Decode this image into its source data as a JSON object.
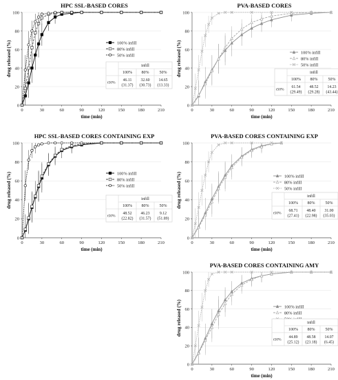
{
  "common": {
    "xlabel": "time (min)",
    "ylabel": "drug released (%)",
    "infill_header": "infill",
    "t50_label": "t50%",
    "xticks": [
      0,
      30,
      60,
      90,
      120,
      150,
      180,
      210
    ],
    "yticks": [
      0,
      20,
      40,
      60,
      80,
      100
    ],
    "xlim": [
      0,
      210
    ],
    "ylim": [
      0,
      100
    ]
  },
  "chart_data": [
    {
      "type": "line",
      "title": "HPC SSL-BASED CORES",
      "xlabel": "time (min)",
      "ylabel": "drug released (%)",
      "series": [
        {
          "name": "100% infill",
          "color": "#000000",
          "marker": "square",
          "x": [
            0,
            5,
            10,
            15,
            20,
            25,
            30,
            40,
            50,
            60,
            75,
            90,
            120,
            150,
            180,
            210
          ],
          "y": [
            0,
            10,
            24,
            40,
            54,
            66,
            76,
            89,
            95,
            98,
            99,
            100,
            100,
            100,
            100,
            100
          ]
        },
        {
          "name": "80% infill",
          "color": "#444444",
          "marker": "square-open",
          "x": [
            0,
            5,
            10,
            15,
            20,
            25,
            30,
            40,
            50,
            60,
            75,
            90,
            120,
            150,
            180,
            210
          ],
          "y": [
            0,
            18,
            40,
            62,
            78,
            88,
            94,
            98,
            99,
            100,
            100,
            100,
            100,
            100,
            100,
            100
          ]
        },
        {
          "name": "50% infill",
          "color": "#222222",
          "marker": "circle-open",
          "x": [
            0,
            5,
            10,
            15,
            20,
            25,
            30,
            40,
            50,
            60,
            75,
            90,
            120,
            150,
            180,
            210
          ],
          "y": [
            0,
            38,
            65,
            80,
            90,
            95,
            98,
            99,
            100,
            100,
            100,
            100,
            100,
            100,
            100,
            100
          ]
        }
      ],
      "t50_values": [
        "46.11 (31.37)",
        "32.60 (30.73)",
        "14.65 (13.33)"
      ]
    },
    {
      "type": "line",
      "title": "PVA-BASED CORES",
      "xlabel": "time (min)",
      "ylabel": "drug released (%)",
      "series": [
        {
          "name": "100% infill",
          "color": "#8c8c8c",
          "marker": "triangle",
          "x": [
            0,
            10,
            20,
            30,
            40,
            50,
            60,
            75,
            90,
            105,
            120,
            150,
            180,
            210
          ],
          "y": [
            0,
            10,
            25,
            38,
            50,
            59,
            67,
            76,
            83,
            88,
            92,
            97,
            99,
            100
          ]
        },
        {
          "name": "80% infill",
          "color": "#a6a6a6",
          "marker": "triangle-open",
          "x": [
            0,
            10,
            20,
            30,
            40,
            50,
            60,
            75,
            90,
            105,
            120,
            150,
            180,
            210
          ],
          "y": [
            0,
            11,
            23,
            37,
            50,
            62,
            72,
            82,
            89,
            93,
            96,
            99,
            100,
            100
          ]
        },
        {
          "name": "50% infill",
          "color": "#b3b3b3",
          "marker": "cross",
          "x": [
            0,
            5,
            10,
            15,
            20,
            25,
            30,
            40,
            50,
            60,
            90,
            120,
            150,
            180,
            210
          ],
          "y": [
            0,
            18,
            38,
            58,
            75,
            87,
            94,
            99,
            100,
            100,
            100,
            100,
            100,
            100,
            100
          ]
        }
      ],
      "t50_values": [
        "61.54 (29.49)",
        "48.52 (29.28)",
        "14.23 (43.44)"
      ]
    },
    {
      "type": "line",
      "title": "HPC SSL-BASED CORES CONTAINING EXP",
      "xlabel": "time (min)",
      "ylabel": "drug released (%)",
      "series": [
        {
          "name": "100% infill",
          "color": "#000000",
          "marker": "square",
          "x": [
            0,
            5,
            10,
            15,
            20,
            25,
            30,
            40,
            50,
            60,
            75,
            90,
            120,
            150,
            180,
            210
          ],
          "y": [
            0,
            8,
            20,
            32,
            43,
            54,
            63,
            77,
            86,
            92,
            96,
            98,
            100,
            100,
            100,
            100
          ]
        },
        {
          "name": "80% infill",
          "color": "#444444",
          "marker": "square-open",
          "x": [
            0,
            5,
            10,
            15,
            20,
            25,
            30,
            40,
            50,
            60,
            75,
            90,
            120,
            150,
            180,
            210
          ],
          "y": [
            0,
            9,
            21,
            33,
            44,
            55,
            65,
            78,
            87,
            93,
            97,
            99,
            100,
            100,
            100,
            100
          ]
        },
        {
          "name": "50% infill",
          "color": "#222222",
          "marker": "circle-open",
          "x": [
            0,
            5,
            10,
            15,
            20,
            25,
            30,
            40,
            50,
            60,
            75,
            90,
            120,
            150,
            180,
            210
          ],
          "y": [
            0,
            55,
            82,
            92,
            96,
            98,
            99,
            100,
            100,
            100,
            100,
            100,
            100,
            100,
            100,
            100
          ]
        }
      ],
      "t50_values": [
        "48.52 (22.82)",
        "46.23 (31.57)",
        "9.12 (51.89)"
      ]
    },
    {
      "type": "line",
      "title": "PVA-BASED CORES CONTAINING EXP",
      "xlabel": "time (min)",
      "ylabel": "drug released (%)",
      "series": [
        {
          "name": "100% infill",
          "color": "#8c8c8c",
          "marker": "triangle",
          "x": [
            0,
            10,
            20,
            30,
            40,
            50,
            60,
            75,
            90,
            105,
            120,
            135
          ],
          "y": [
            0,
            12,
            26,
            41,
            54,
            66,
            76,
            86,
            93,
            97,
            99,
            100
          ]
        },
        {
          "name": "80% infill",
          "color": "#a6a6a6",
          "marker": "triangle-open",
          "x": [
            0,
            10,
            20,
            30,
            40,
            50,
            60,
            75,
            90,
            105,
            120,
            135
          ],
          "y": [
            0,
            11,
            24,
            38,
            52,
            64,
            74,
            85,
            92,
            96,
            99,
            100
          ]
        },
        {
          "name": "50% infill",
          "color": "#b3b3b3",
          "marker": "cross",
          "x": [
            0,
            5,
            10,
            15,
            20,
            25,
            30,
            40,
            50,
            60,
            90,
            120,
            135
          ],
          "y": [
            0,
            15,
            32,
            50,
            66,
            80,
            90,
            98,
            100,
            100,
            100,
            100,
            100
          ]
        }
      ],
      "t50_values": [
        "68.71 (27.41)",
        "48.40 (22.98)",
        "31.00 (35.03)"
      ]
    },
    {
      "type": "line",
      "title": "PVA-BASED CORES CONTAINING AMY",
      "xlabel": "time (min)",
      "ylabel": "drug released (%)",
      "series": [
        {
          "name": "100% infill",
          "color": "#8c8c8c",
          "marker": "triangle",
          "x": [
            0,
            10,
            20,
            30,
            40,
            50,
            60,
            75,
            90,
            105,
            120,
            150,
            180,
            210
          ],
          "y": [
            0,
            13,
            28,
            44,
            58,
            70,
            79,
            88,
            93,
            96,
            98,
            100,
            100,
            100
          ]
        },
        {
          "name": "80% infill",
          "color": "#a6a6a6",
          "marker": "triangle-open",
          "x": [
            0,
            10,
            20,
            30,
            40,
            50,
            60,
            75,
            90,
            105,
            120,
            150,
            180,
            210
          ],
          "y": [
            0,
            12,
            26,
            40,
            54,
            66,
            76,
            86,
            92,
            96,
            98,
            100,
            100,
            100
          ]
        },
        {
          "name": "50% infill",
          "color": "#b3b3b3",
          "marker": "cross",
          "x": [
            0,
            5,
            10,
            15,
            20,
            25,
            30,
            40,
            50,
            60,
            90,
            120,
            150,
            180,
            210
          ],
          "y": [
            0,
            20,
            42,
            62,
            80,
            92,
            98,
            100,
            100,
            100,
            100,
            100,
            100,
            100,
            100
          ]
        }
      ],
      "t50_values": [
        "44.89 (25.12)",
        "48.58 (23.18)",
        "14.07 (6.45)"
      ]
    }
  ]
}
